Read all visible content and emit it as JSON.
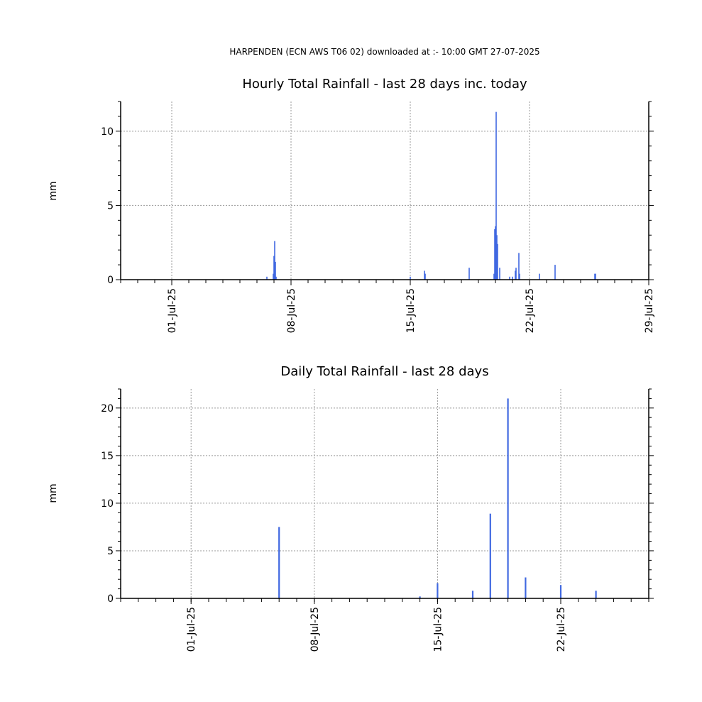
{
  "header": "HARPENDEN (ECN AWS T06 02) downloaded at :- 10:00 GMT 27-07-2025",
  "colors": {
    "bar": "#4169e1",
    "grid": "#999999",
    "axis": "#000000"
  },
  "chart_data": [
    {
      "type": "bar",
      "title": "Hourly Total Rainfall - last 28 days inc. today",
      "ylabel": "mm",
      "x_axis": "date",
      "xlim": [
        "2025-06-28",
        "2025-07-29"
      ],
      "ylim": [
        0,
        12
      ],
      "yticks": [
        0,
        5,
        10
      ],
      "xtick_labels": [
        "01-Jul-25",
        "08-Jul-25",
        "15-Jul-25",
        "22-Jul-25",
        "29-Jul-25"
      ],
      "grid": true,
      "points": [
        {
          "x": "2025-07-06T14:00",
          "y": 0.2
        },
        {
          "x": "2025-07-06T23:00",
          "y": 0.4
        },
        {
          "x": "2025-07-07T00:00",
          "y": 1.6
        },
        {
          "x": "2025-07-07T01:00",
          "y": 2.6
        },
        {
          "x": "2025-07-07T02:00",
          "y": 1.2
        },
        {
          "x": "2025-07-07T03:00",
          "y": 0.2
        },
        {
          "x": "2025-07-15T00:00",
          "y": 0.2
        },
        {
          "x": "2025-07-15T20:00",
          "y": 0.6
        },
        {
          "x": "2025-07-15T21:00",
          "y": 0.4
        },
        {
          "x": "2025-07-18T11:00",
          "y": 0.8
        },
        {
          "x": "2025-07-19T22:00",
          "y": 0.4
        },
        {
          "x": "2025-07-19T23:00",
          "y": 3.4
        },
        {
          "x": "2025-07-20T00:00",
          "y": 3.6
        },
        {
          "x": "2025-07-20T01:00",
          "y": 11.3
        },
        {
          "x": "2025-07-20T02:00",
          "y": 3.0
        },
        {
          "x": "2025-07-20T03:00",
          "y": 2.4
        },
        {
          "x": "2025-07-20T06:00",
          "y": 0.8
        },
        {
          "x": "2025-07-20T20:00",
          "y": 0.2
        },
        {
          "x": "2025-07-21T00:00",
          "y": 0.2
        },
        {
          "x": "2025-07-21T04:00",
          "y": 0.6
        },
        {
          "x": "2025-07-21T05:00",
          "y": 0.8
        },
        {
          "x": "2025-07-21T09:00",
          "y": 1.8
        },
        {
          "x": "2025-07-21T10:00",
          "y": 0.4
        },
        {
          "x": "2025-07-22T14:00",
          "y": 0.4
        },
        {
          "x": "2025-07-23T12:00",
          "y": 1.0
        },
        {
          "x": "2025-07-25T20:00",
          "y": 0.4
        },
        {
          "x": "2025-07-25T21:00",
          "y": 0.4
        }
      ]
    },
    {
      "type": "bar",
      "title": "Daily Total Rainfall - last 28 days",
      "ylabel": "mm",
      "x_axis": "date",
      "xlim": [
        "2025-06-27",
        "2025-07-27"
      ],
      "ylim": [
        0,
        22
      ],
      "yticks": [
        0,
        5,
        10,
        15,
        20
      ],
      "xtick_labels": [
        "01-Jul-25",
        "08-Jul-25",
        "15-Jul-25",
        "22-Jul-25"
      ],
      "grid": true,
      "points": [
        {
          "x": "2025-07-06",
          "y": 7.5
        },
        {
          "x": "2025-07-14",
          "y": 0.2
        },
        {
          "x": "2025-07-15",
          "y": 1.6
        },
        {
          "x": "2025-07-17",
          "y": 0.8
        },
        {
          "x": "2025-07-18",
          "y": 8.9
        },
        {
          "x": "2025-07-19",
          "y": 21.0
        },
        {
          "x": "2025-07-20",
          "y": 2.2
        },
        {
          "x": "2025-07-22",
          "y": 1.4
        },
        {
          "x": "2025-07-24",
          "y": 0.8
        }
      ]
    }
  ]
}
